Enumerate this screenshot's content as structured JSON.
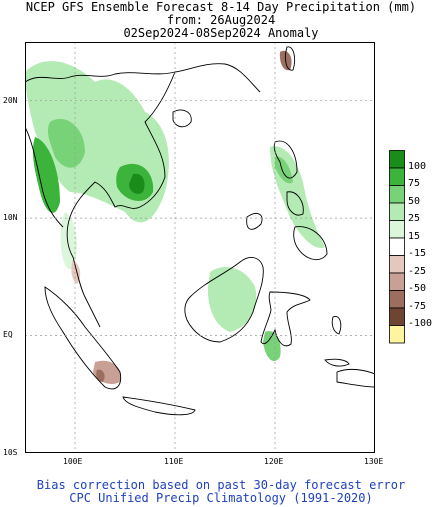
{
  "title": {
    "line1": "NCEP GFS Ensemble Forecast 8-14 Day Precipitation (mm)",
    "line2": "from: 26Aug2024",
    "line3": "02Sep2024-08Sep2024 Anomaly"
  },
  "footer": {
    "line1": "Bias correction based on past 30-day forecast error",
    "line2": "CPC Unified Precip Climatology (1991-2020)",
    "color": "#1f3fbf"
  },
  "axes": {
    "lat_labels": [
      "20N",
      "10N",
      "EQ",
      "10S"
    ],
    "lon_labels": [
      "100E",
      "110E",
      "120E",
      "130E"
    ],
    "lat_range": [
      -10,
      25
    ],
    "lon_range": [
      95,
      130
    ]
  },
  "legend": {
    "labels": [
      "100",
      "75",
      "50",
      "25",
      "15",
      "-15",
      "-25",
      "-50",
      "-75",
      "-100"
    ],
    "colors": [
      "#1a8c1a",
      "#3cb43c",
      "#78d278",
      "#b4eab4",
      "#dcf6dc",
      "#ffffff",
      "#e4c8be",
      "#c8a096",
      "#9b6e60",
      "#6e4432",
      "#fff5a0"
    ]
  },
  "colors": {
    "land_outline": "#000000",
    "grid": "#999999"
  }
}
